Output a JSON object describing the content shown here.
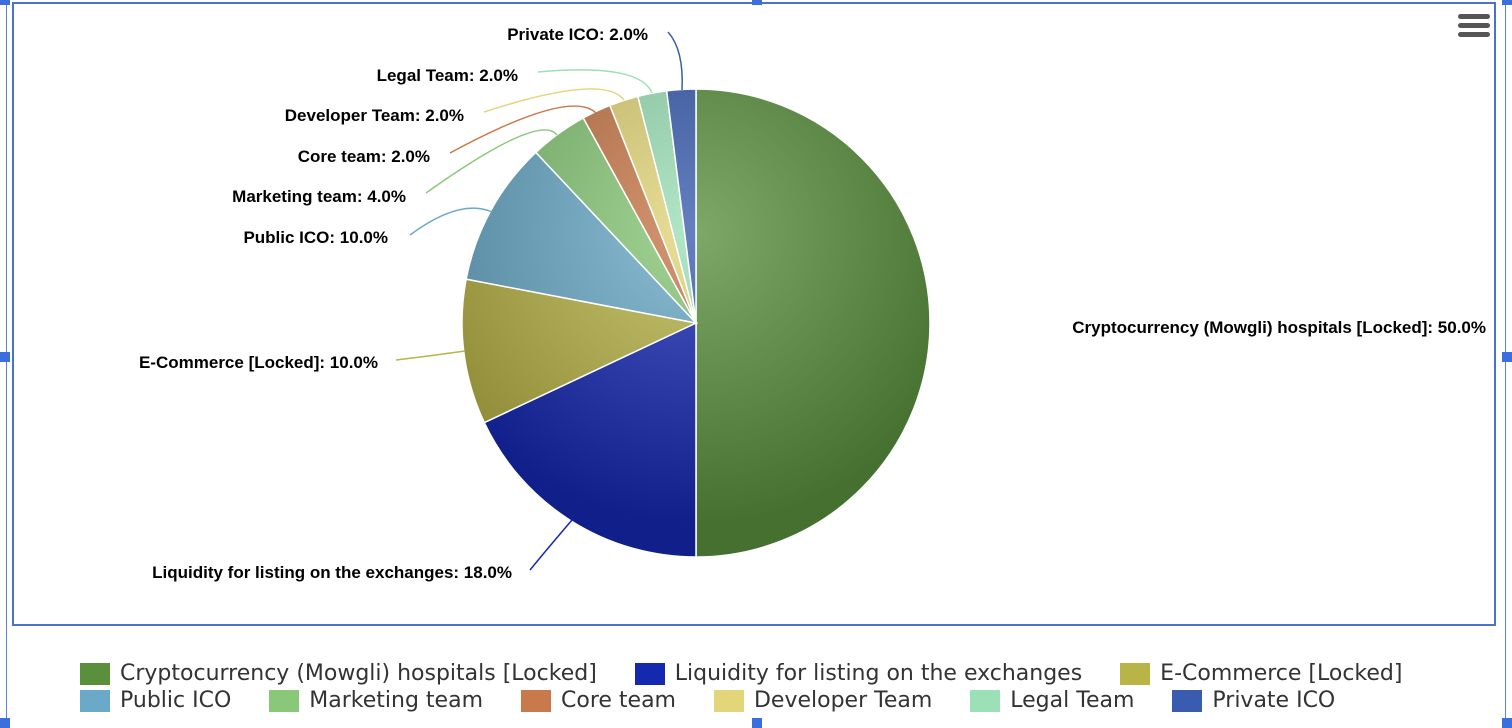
{
  "chart_data": {
    "type": "pie",
    "categories": [
      "Cryptocurrency (Mowgli) hospitals [Locked]",
      "Liquidity for listing on the exchanges",
      "E-Commerce [Locked]",
      "Public ICO",
      "Marketing team",
      "Core team",
      "Developer Team",
      "Legal Team",
      "Private ICO"
    ],
    "values": [
      50.0,
      18.0,
      10.0,
      10.0,
      4.0,
      2.0,
      2.0,
      2.0,
      2.0
    ],
    "labels": [
      "Cryptocurrency (Mowgli) hospitals [Locked]: 50.0%",
      "Liquidity for listing on the exchanges: 18.0%",
      "E-Commerce [Locked]: 10.0%",
      "Public ICO: 10.0%",
      "Marketing team: 4.0%",
      "Core team: 2.0%",
      "Developer Team: 2.0%",
      "Legal Team: 2.0%",
      "Private ICO: 2.0%"
    ],
    "colors": [
      "#5a8f3c",
      "#1428b0",
      "#b8b448",
      "#6aaac8",
      "#88c878",
      "#c97a4a",
      "#e3d67a",
      "#9ce0b8",
      "#3a5cb0"
    ],
    "legend_position": "bottom"
  },
  "legend": {
    "items": [
      {
        "label": "Cryptocurrency (Mowgli) hospitals [Locked]",
        "color": "#5a8f3c"
      },
      {
        "label": "Liquidity for listing on the exchanges",
        "color": "#1428b0"
      },
      {
        "label": "E-Commerce [Locked]",
        "color": "#b8b448"
      },
      {
        "label": "Public ICO",
        "color": "#6aaac8"
      },
      {
        "label": "Marketing team",
        "color": "#88c878"
      },
      {
        "label": "Core team",
        "color": "#c97a4a"
      },
      {
        "label": "Developer Team",
        "color": "#e3d67a"
      },
      {
        "label": "Legal Team",
        "color": "#9ce0b8"
      },
      {
        "label": "Private ICO",
        "color": "#3a5cb0"
      }
    ]
  },
  "menu": {
    "icon": "hamburger-menu-icon"
  }
}
